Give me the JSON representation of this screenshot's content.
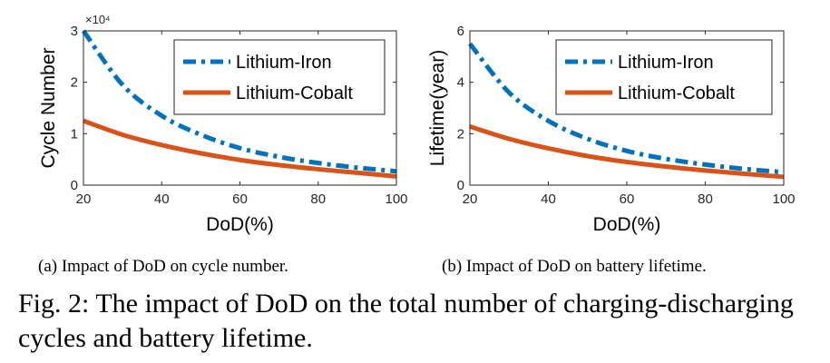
{
  "colors": {
    "iron": "#0072BD",
    "cobalt": "#D95319"
  },
  "chart_data": [
    {
      "type": "line",
      "subcaption": "(a) Impact of DoD on cycle number.",
      "xlabel": "DoD(%)",
      "ylabel": "Cycle Number",
      "exponent_label": "×10⁴",
      "xlim": [
        20,
        100
      ],
      "ylim": [
        0,
        3
      ],
      "xticks": [
        20,
        40,
        60,
        80,
        100
      ],
      "yticks": [
        0,
        1,
        2,
        3
      ],
      "y_scale_factor": 10000,
      "grid": false,
      "legend": "top-right",
      "x": [
        20,
        30,
        40,
        50,
        60,
        70,
        80,
        90,
        100
      ],
      "series": [
        {
          "name": "Lithium-Iron",
          "style": "dash-dot",
          "values": [
            3.0,
            1.95,
            1.35,
            0.98,
            0.72,
            0.55,
            0.43,
            0.34,
            0.27
          ]
        },
        {
          "name": "Lithium-Cobalt",
          "style": "solid",
          "values": [
            1.25,
            0.98,
            0.78,
            0.62,
            0.49,
            0.39,
            0.31,
            0.24,
            0.17
          ]
        }
      ]
    },
    {
      "type": "line",
      "subcaption": "(b) Impact of DoD on battery lifetime.",
      "xlabel": "DoD(%)",
      "ylabel": "Lifetime(year)",
      "xlim": [
        20,
        100
      ],
      "ylim": [
        0,
        6
      ],
      "xticks": [
        20,
        40,
        60,
        80,
        100
      ],
      "yticks": [
        0,
        2,
        4,
        6
      ],
      "grid": false,
      "legend": "top-right",
      "x": [
        20,
        30,
        40,
        50,
        60,
        70,
        80,
        90,
        100
      ],
      "series": [
        {
          "name": "Lithium-Iron",
          "style": "dash-dot",
          "values": [
            5.5,
            3.6,
            2.5,
            1.8,
            1.33,
            1.02,
            0.8,
            0.63,
            0.5
          ]
        },
        {
          "name": "Lithium-Cobalt",
          "style": "solid",
          "values": [
            2.28,
            1.8,
            1.43,
            1.13,
            0.9,
            0.72,
            0.57,
            0.44,
            0.32
          ]
        }
      ]
    }
  ],
  "figure_caption": "Fig. 2: The impact of DoD on the total number of charging-discharging cycles and battery lifetime."
}
